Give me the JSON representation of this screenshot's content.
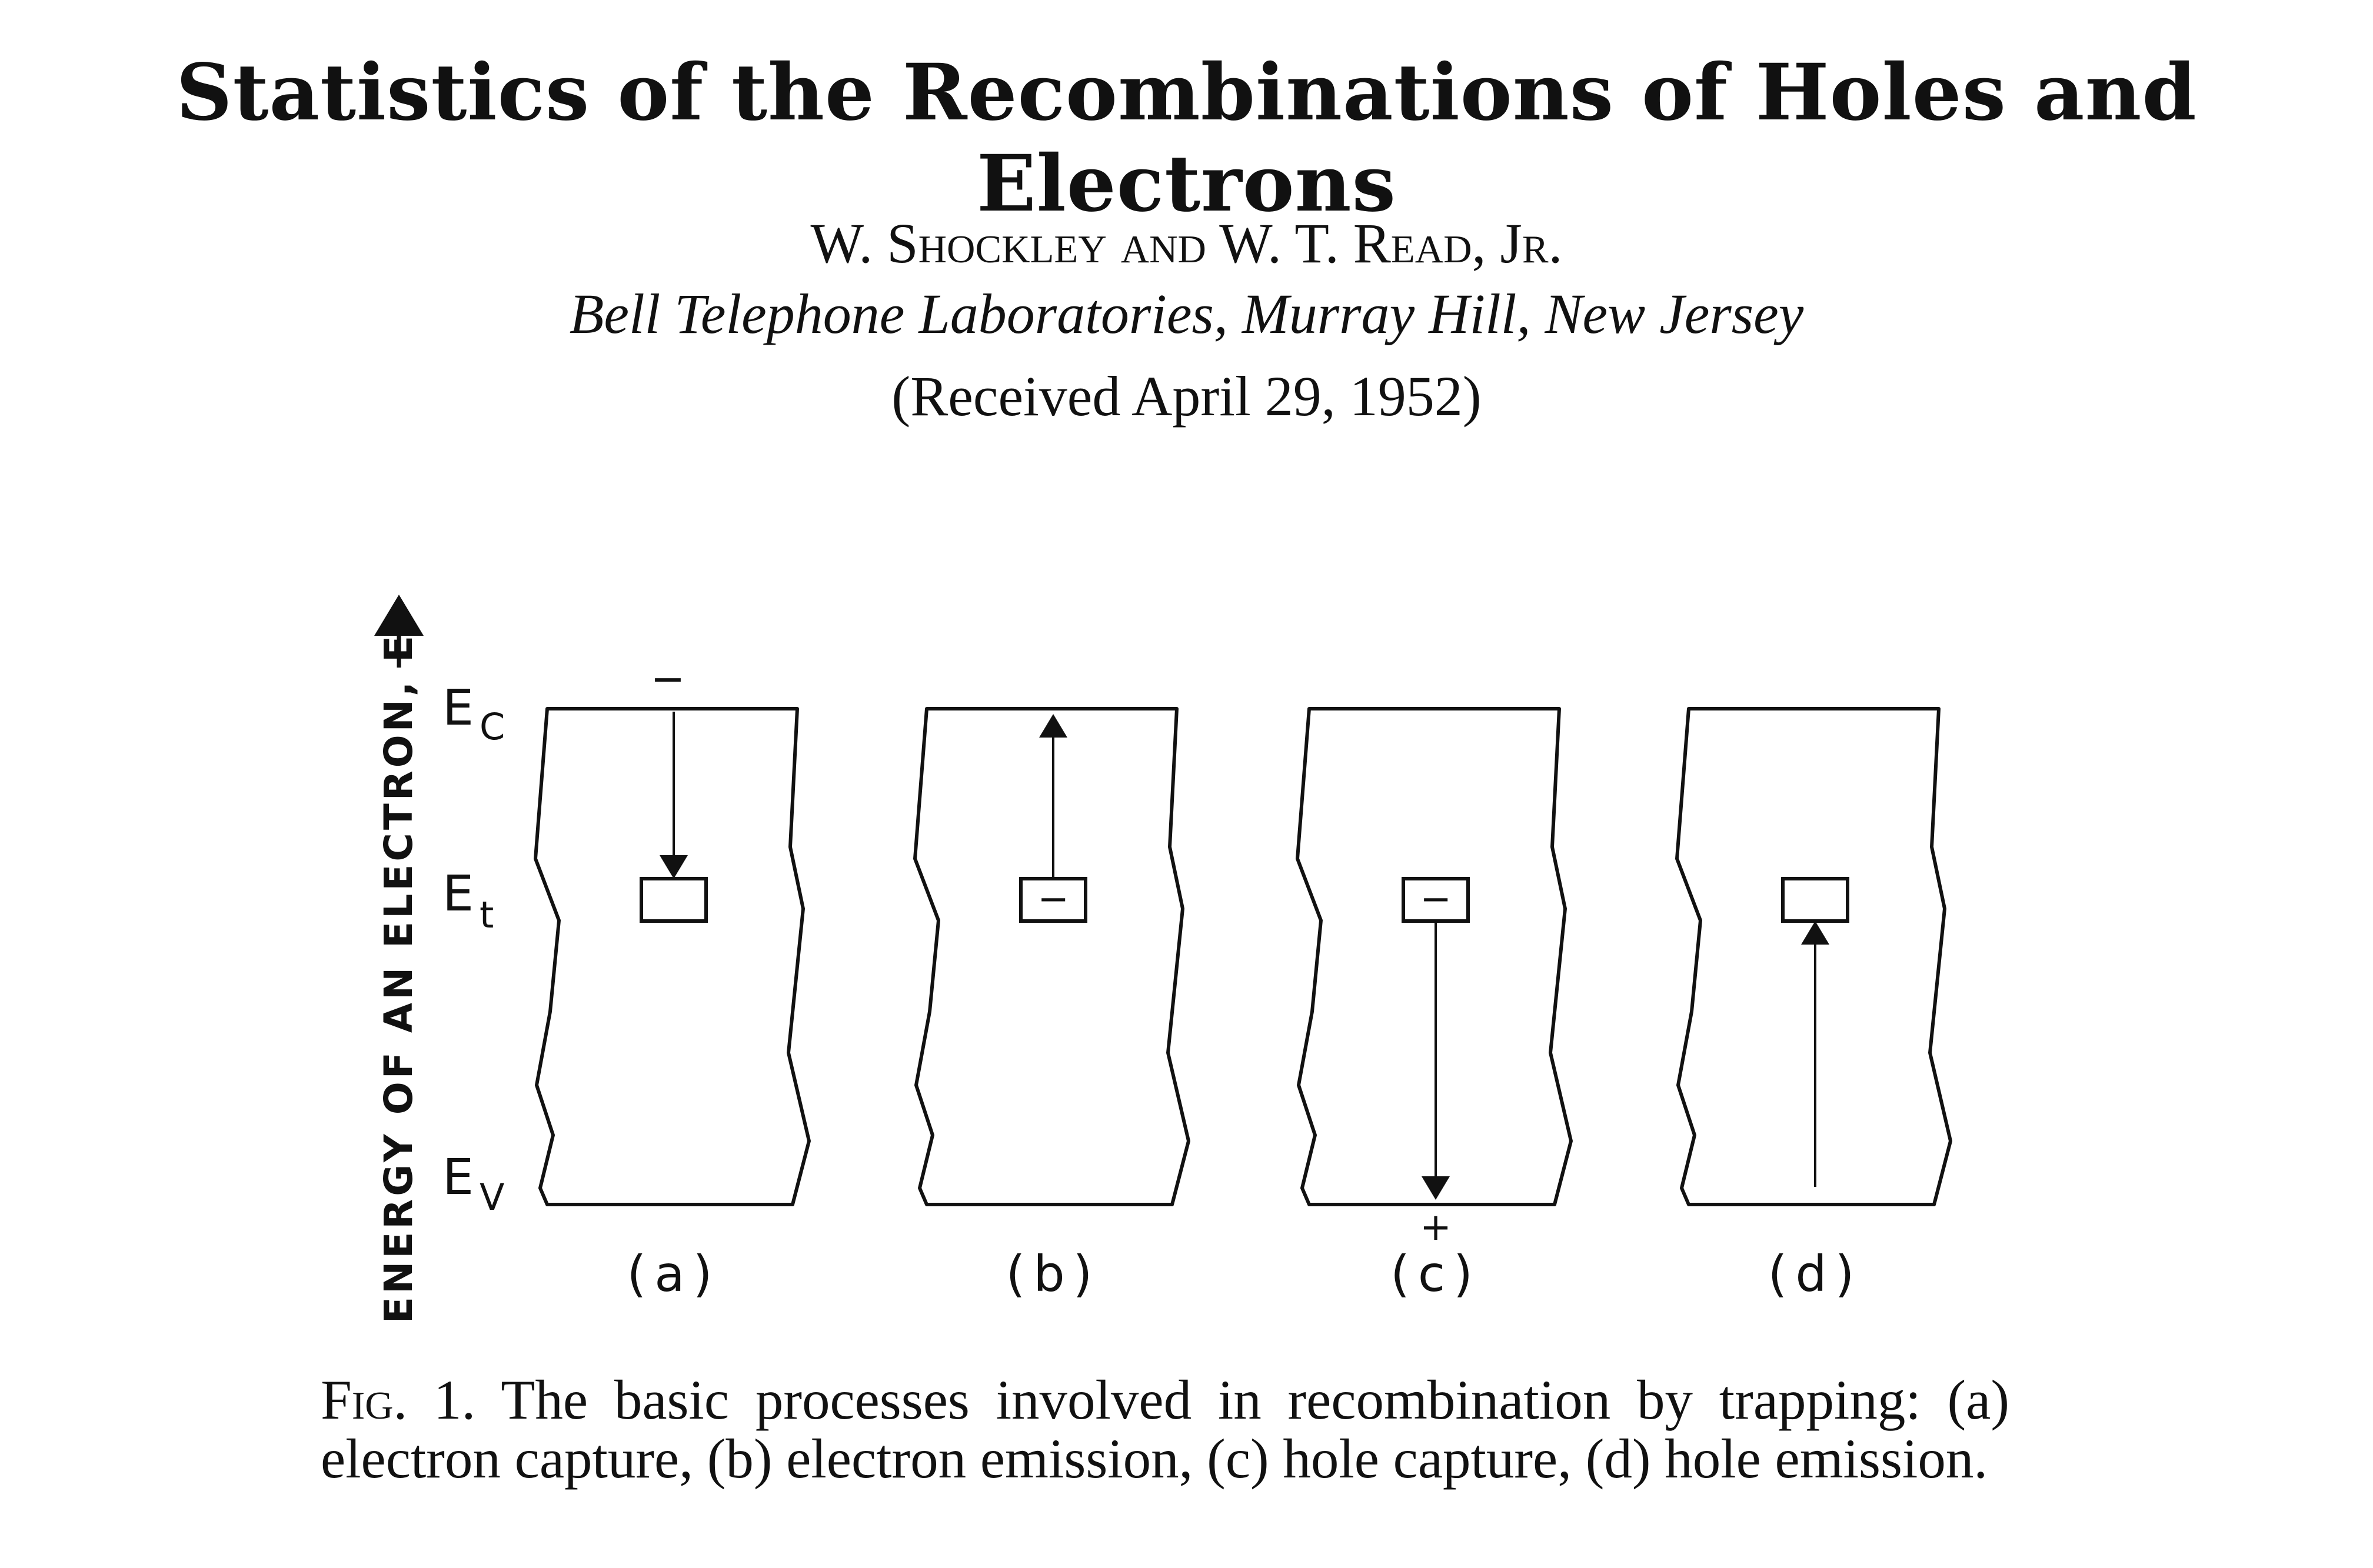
{
  "paper": {
    "title": "Statistics of the Recombinations of Holes and Electrons",
    "authors": "W. Shockley and W. T. Read, Jr.",
    "affiliation": "Bell Telephone Laboratories, Murray Hill, New Jersey",
    "received": "(Received April 29, 1952)"
  },
  "figure": {
    "y_axis_label": "ENERGY OF AN ELECTRON, E",
    "levels": {
      "conduction": "E",
      "conduction_sub": "C",
      "trap": "E",
      "trap_sub": "t",
      "valence": "E",
      "valence_sub": "V"
    },
    "panels": [
      {
        "label": "(a)",
        "arrow": "down-from-Ec-to-trap",
        "trap_filled": false,
        "top_mark": "−",
        "bottom_mark": ""
      },
      {
        "label": "(b)",
        "arrow": "up-from-trap-to-Ec",
        "trap_filled": true,
        "top_mark": "",
        "bottom_mark": ""
      },
      {
        "label": "(c)",
        "arrow": "down-from-trap-to-Ev",
        "trap_filled": true,
        "top_mark": "",
        "bottom_mark": "+"
      },
      {
        "label": "(d)",
        "arrow": "up-from-Ev-to-trap",
        "trap_filled": false,
        "top_mark": "",
        "bottom_mark": ""
      }
    ],
    "trap_charge_symbol": "−",
    "caption_label": "Fig. 1.",
    "caption_text": "The basic processes involved in recombination by trapping: (a) electron capture, (b) electron emission, (c) hole capture, (d) hole emission."
  }
}
